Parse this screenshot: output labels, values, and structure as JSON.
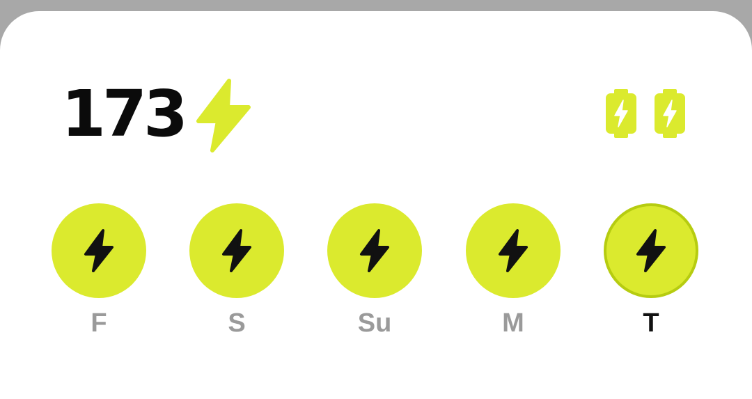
{
  "colors": {
    "accent": "#dbea2e",
    "accent_dark": "#b6cc10",
    "text": "#0b0b0b",
    "muted": "#9a9a9a"
  },
  "streak": {
    "count": "173",
    "icon": "lightning-bolt-icon"
  },
  "freezes": {
    "icon": "battery-bolt-icon",
    "count": 2
  },
  "days": [
    {
      "label": "F",
      "completed": true,
      "today": false
    },
    {
      "label": "S",
      "completed": true,
      "today": false
    },
    {
      "label": "Su",
      "completed": true,
      "today": false
    },
    {
      "label": "M",
      "completed": true,
      "today": false
    },
    {
      "label": "T",
      "completed": true,
      "today": true
    }
  ]
}
